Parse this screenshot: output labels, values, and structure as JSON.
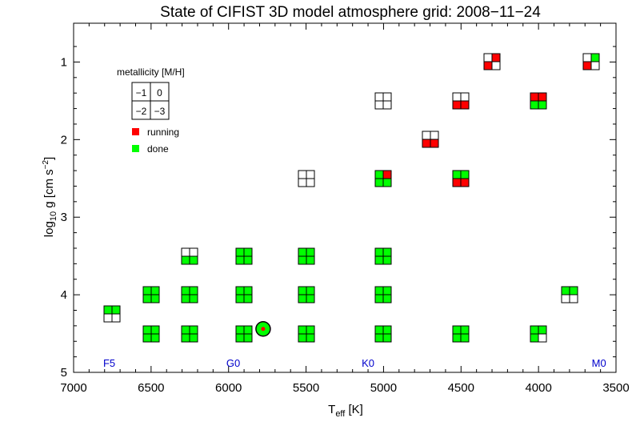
{
  "chart_data": {
    "type": "scatter",
    "title": "State of CIFIST 3D model atmosphere grid: 2008−11−24",
    "xlabel": {
      "main": "T",
      "sub": "eff",
      "unit": " [K]"
    },
    "ylabel": {
      "pre": "log",
      "sub": "10",
      "mid": " g [cm s",
      "sup": "−2",
      "post": "]"
    },
    "xlim": [
      7000,
      3500
    ],
    "ylim": [
      0.5,
      5.0
    ],
    "x_ticks": [
      {
        "v": 7000,
        "label": "7000"
      },
      {
        "v": 6500,
        "label": "6500"
      },
      {
        "v": 6000,
        "label": "6000"
      },
      {
        "v": 5500,
        "label": "5500"
      },
      {
        "v": 5000,
        "label": "5000"
      },
      {
        "v": 4500,
        "label": "4500"
      },
      {
        "v": 4000,
        "label": "4000"
      },
      {
        "v": 3500,
        "label": "3500"
      }
    ],
    "y_ticks": [
      {
        "v": 1,
        "label": "1"
      },
      {
        "v": 2,
        "label": "2"
      },
      {
        "v": 3,
        "label": "3"
      },
      {
        "v": 4,
        "label": "4"
      },
      {
        "v": 5,
        "label": "5"
      }
    ],
    "spectral_types": [
      {
        "teff": 6770,
        "label": "F5"
      },
      {
        "teff": 5970,
        "label": "G0"
      },
      {
        "teff": 5100,
        "label": "K0"
      },
      {
        "teff": 3610,
        "label": "M0"
      }
    ],
    "sun": {
      "teff": 5777,
      "logg": 4.44
    },
    "legend": {
      "title": "metallicity [M/H]",
      "cells": [
        "−1",
        "0",
        "−2",
        "−3"
      ],
      "running_label": "running",
      "done_label": "done",
      "position": "top-left"
    },
    "colors": {
      "running": "#ff0000",
      "done": "#00ff00",
      "none": "#ffffff",
      "spectral": "#0000cc"
    },
    "cell_order": [
      "[M/H]=-1",
      "[M/H]=0",
      "[M/H]=-2",
      "[M/H]=-3"
    ],
    "models": [
      {
        "teff": 6750,
        "logg": 4.25,
        "state": [
          "done",
          "done",
          "none",
          "none"
        ]
      },
      {
        "teff": 6500,
        "logg": 4.0,
        "state": [
          "done",
          "done",
          "done",
          "done"
        ]
      },
      {
        "teff": 6500,
        "logg": 4.5,
        "state": [
          "done",
          "done",
          "done",
          "done"
        ]
      },
      {
        "teff": 6250,
        "logg": 3.5,
        "state": [
          "none",
          "none",
          "done",
          "done"
        ]
      },
      {
        "teff": 6250,
        "logg": 4.0,
        "state": [
          "done",
          "done",
          "done",
          "done"
        ]
      },
      {
        "teff": 6250,
        "logg": 4.5,
        "state": [
          "done",
          "done",
          "done",
          "done"
        ]
      },
      {
        "teff": 5900,
        "logg": 3.5,
        "state": [
          "done",
          "done",
          "done",
          "done"
        ]
      },
      {
        "teff": 5900,
        "logg": 4.0,
        "state": [
          "done",
          "done",
          "done",
          "done"
        ]
      },
      {
        "teff": 5900,
        "logg": 4.5,
        "state": [
          "done",
          "done",
          "done",
          "done"
        ]
      },
      {
        "teff": 5500,
        "logg": 2.5,
        "state": [
          "none",
          "none",
          "none",
          "none"
        ]
      },
      {
        "teff": 5500,
        "logg": 3.5,
        "state": [
          "done",
          "done",
          "done",
          "done"
        ]
      },
      {
        "teff": 5500,
        "logg": 4.0,
        "state": [
          "done",
          "done",
          "done",
          "done"
        ]
      },
      {
        "teff": 5500,
        "logg": 4.5,
        "state": [
          "done",
          "done",
          "done",
          "done"
        ]
      },
      {
        "teff": 5000,
        "logg": 1.5,
        "state": [
          "none",
          "none",
          "none",
          "none"
        ]
      },
      {
        "teff": 5000,
        "logg": 2.5,
        "state": [
          "done",
          "running",
          "done",
          "done"
        ]
      },
      {
        "teff": 5000,
        "logg": 3.5,
        "state": [
          "done",
          "done",
          "done",
          "done"
        ]
      },
      {
        "teff": 5000,
        "logg": 4.0,
        "state": [
          "done",
          "done",
          "done",
          "done"
        ]
      },
      {
        "teff": 5000,
        "logg": 4.5,
        "state": [
          "done",
          "done",
          "done",
          "done"
        ]
      },
      {
        "teff": 4700,
        "logg": 2.0,
        "state": [
          "none",
          "none",
          "running",
          "running"
        ]
      },
      {
        "teff": 4500,
        "logg": 1.5,
        "state": [
          "none",
          "none",
          "running",
          "running"
        ]
      },
      {
        "teff": 4500,
        "logg": 2.5,
        "state": [
          "done",
          "done",
          "running",
          "running"
        ]
      },
      {
        "teff": 4500,
        "logg": 4.5,
        "state": [
          "done",
          "done",
          "done",
          "done"
        ]
      },
      {
        "teff": 4300,
        "logg": 1.0,
        "state": [
          "none",
          "running",
          "running",
          "none"
        ]
      },
      {
        "teff": 4000,
        "logg": 1.5,
        "state": [
          "running",
          "running",
          "done",
          "done"
        ]
      },
      {
        "teff": 4000,
        "logg": 4.5,
        "state": [
          "done",
          "done",
          "done",
          "none"
        ]
      },
      {
        "teff": 3800,
        "logg": 4.0,
        "state": [
          "done",
          "done",
          "none",
          "none"
        ]
      },
      {
        "teff": 3660,
        "logg": 1.0,
        "state": [
          "none",
          "done",
          "running",
          "none"
        ]
      }
    ]
  }
}
